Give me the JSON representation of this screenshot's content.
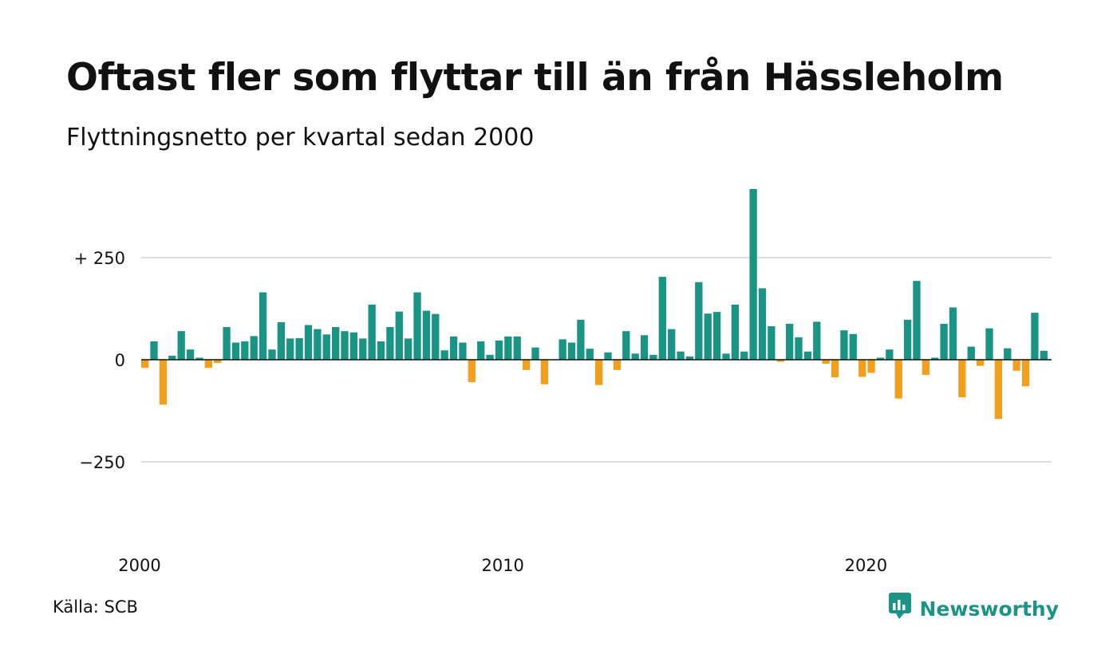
{
  "header": {
    "title": "Oftast fler som flyttar till än från Hässleholm",
    "subtitle": "Flyttningsnetto per kvartal sedan 2000"
  },
  "footer": {
    "source": "Källa: SCB",
    "brand": "Newsworthy"
  },
  "colors": {
    "positive": "#1a9484",
    "negative": "#f29f1d",
    "grid": "#dddddd",
    "zero_line": "#111111",
    "brand": "#1a9484"
  },
  "icons": {
    "brand_logo": "newsworthy-logo-icon"
  },
  "chart_data": {
    "type": "bar",
    "title": "Oftast fler som flyttar till än från Hässleholm",
    "subtitle": "Flyttningsnetto per kvartal sedan 2000",
    "xlabel": "",
    "ylabel": "",
    "ylim": [
      -400,
      420
    ],
    "y_ticks": [
      {
        "value": 250,
        "label": "+ 250"
      },
      {
        "value": 0,
        "label": "0"
      },
      {
        "value": -250,
        "label": "−250"
      }
    ],
    "x_ticks": [
      {
        "value": 2000,
        "label": "2000"
      },
      {
        "value": 2010,
        "label": "2010"
      },
      {
        "value": 2020,
        "label": "2020"
      }
    ],
    "grid": true,
    "legend": "none",
    "x_start": "2000 Q1",
    "frequency": "quarterly",
    "values": [
      -20,
      45,
      -110,
      10,
      70,
      25,
      5,
      -20,
      -8,
      80,
      42,
      45,
      58,
      165,
      25,
      92,
      52,
      53,
      85,
      75,
      62,
      80,
      70,
      67,
      52,
      135,
      45,
      80,
      118,
      52,
      165,
      120,
      112,
      23,
      57,
      42,
      -55,
      45,
      12,
      47,
      57,
      57,
      -25,
      30,
      -60,
      0,
      50,
      42,
      98,
      27,
      -62,
      18,
      -25,
      70,
      15,
      60,
      12,
      203,
      75,
      20,
      8,
      190,
      113,
      117,
      15,
      135,
      20,
      418,
      175,
      82,
      -5,
      88,
      55,
      20,
      93,
      -10,
      -43,
      72,
      63,
      -42,
      -32,
      5,
      25,
      -95,
      98,
      193,
      -37,
      5,
      88,
      128,
      -92,
      32,
      -15,
      77,
      -145,
      28,
      -27,
      -65,
      115,
      22
    ]
  }
}
